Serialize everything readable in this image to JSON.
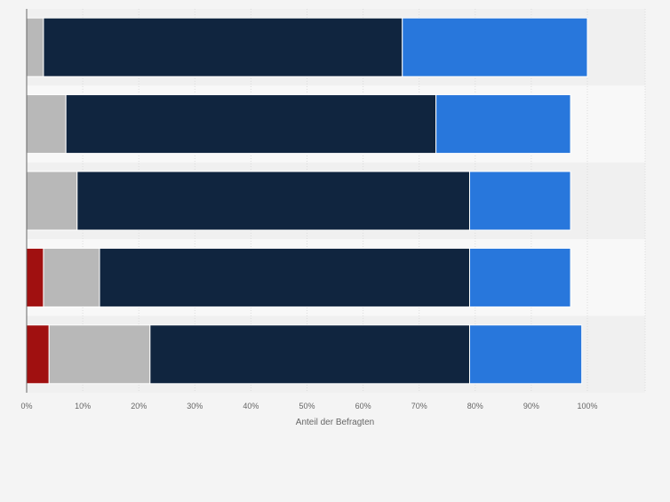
{
  "chart_data": {
    "type": "bar",
    "orientation": "horizontal",
    "stacked": true,
    "xlabel": "Anteil der Befragten",
    "x_ticks": [
      "0%",
      "10%",
      "20%",
      "30%",
      "40%",
      "50%",
      "60%",
      "70%",
      "80%",
      "90%",
      "100%"
    ],
    "xlim": [
      0,
      100
    ],
    "grid": true,
    "legend": "none",
    "series": [
      {
        "color": "#a01010",
        "values": [
          0,
          0,
          0,
          3,
          4
        ]
      },
      {
        "color": "#b8b8b8",
        "values": [
          3,
          7,
          9,
          10,
          18
        ]
      },
      {
        "color": "#10253f",
        "values": [
          64,
          66,
          70,
          66,
          57
        ]
      },
      {
        "color": "#2877dc",
        "values": [
          33,
          24,
          18,
          18,
          20
        ]
      }
    ]
  }
}
